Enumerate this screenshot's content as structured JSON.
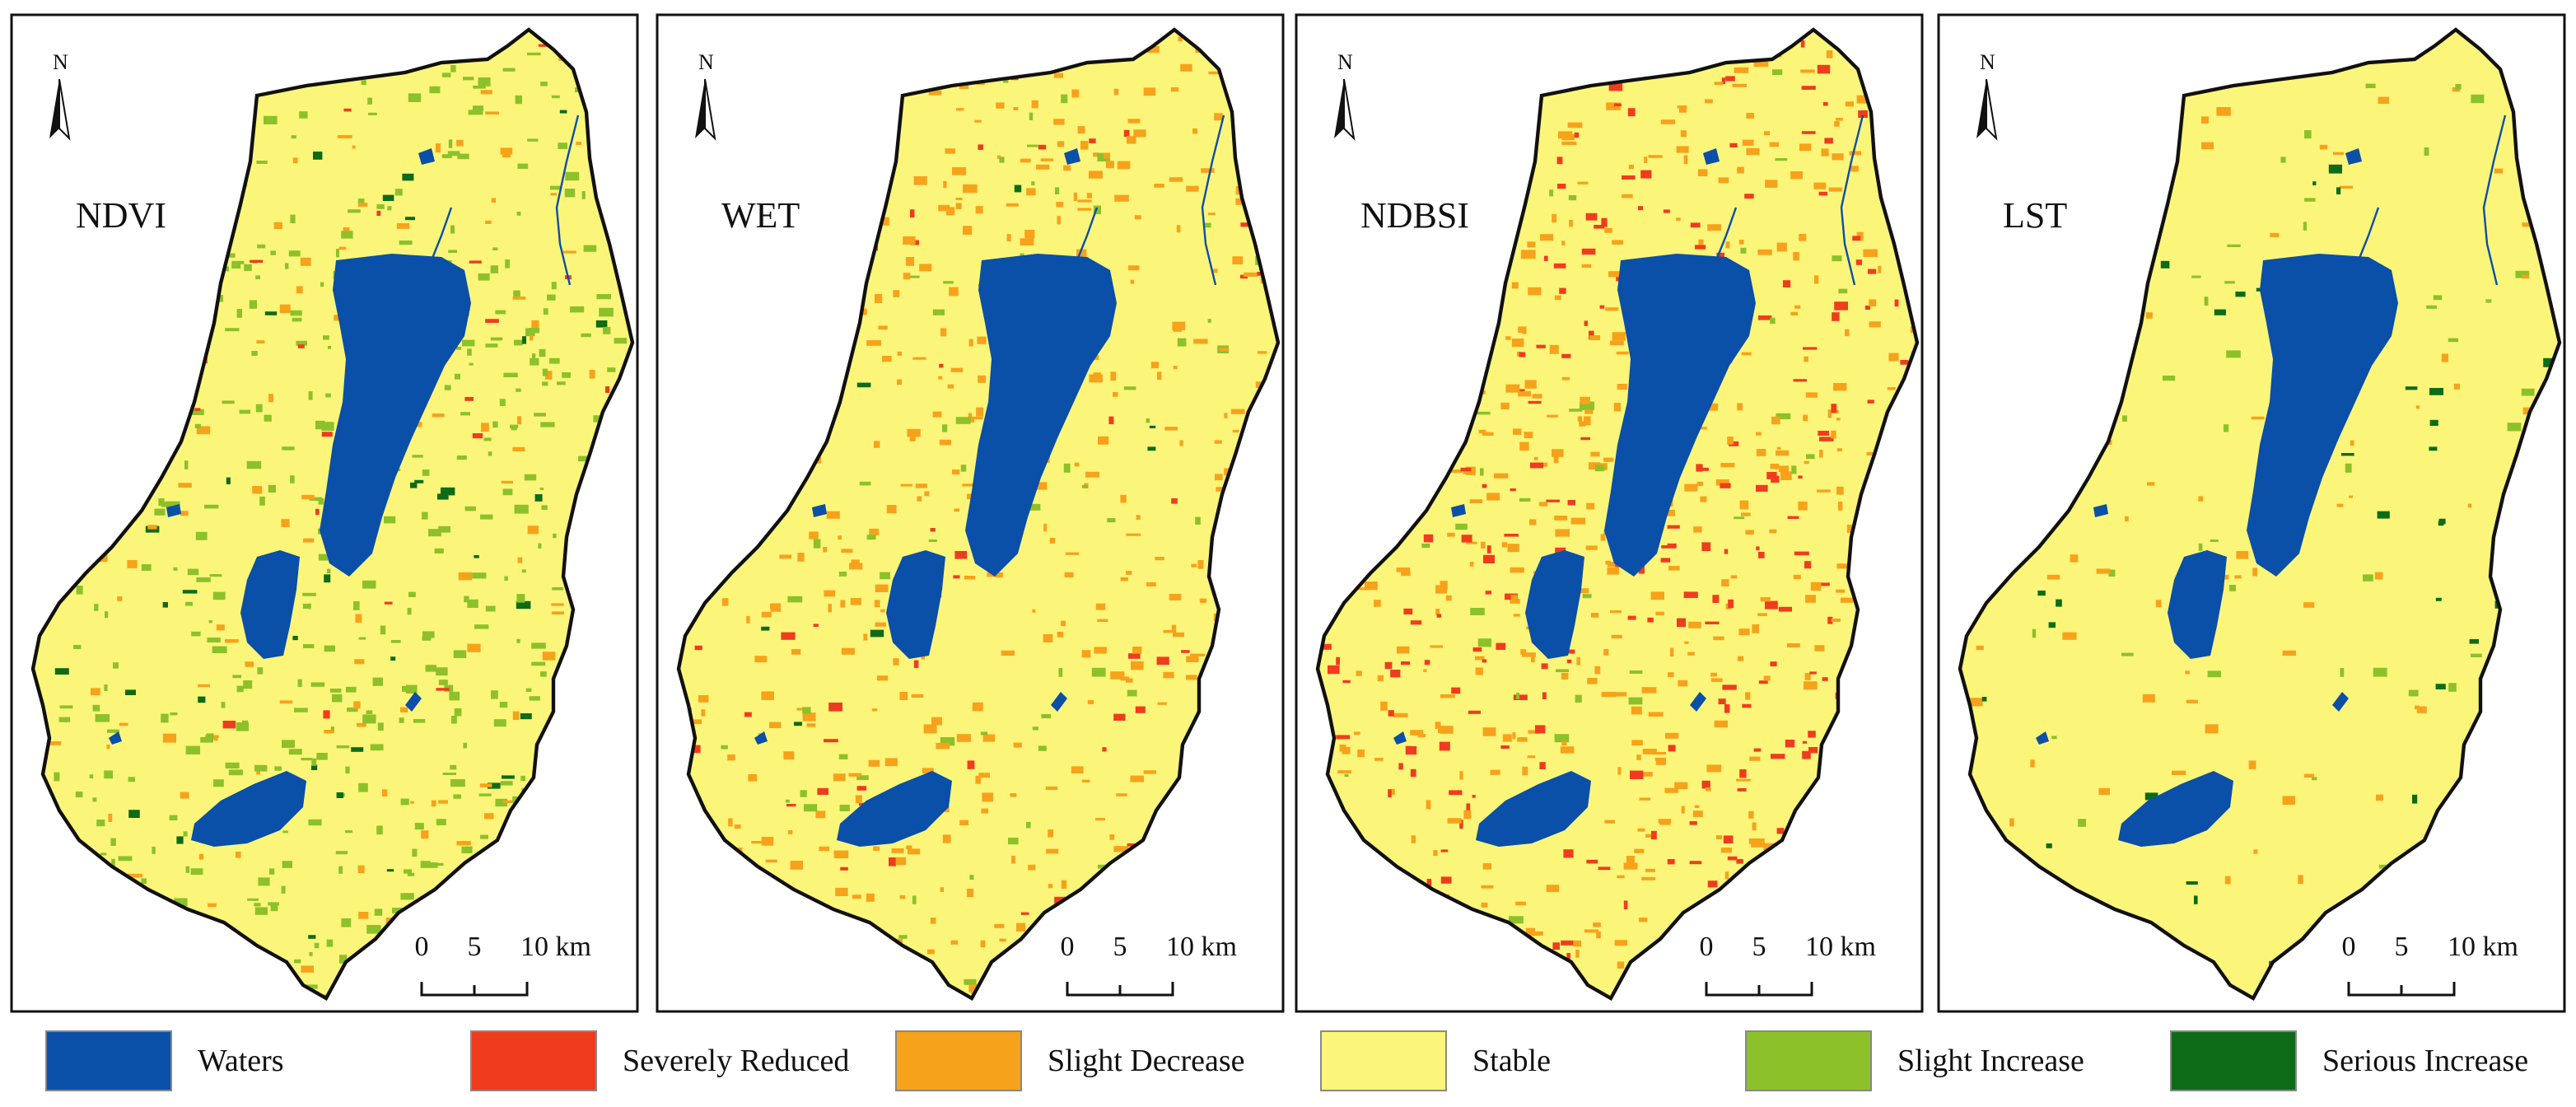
{
  "panels": [
    {
      "label": "NDVI"
    },
    {
      "label": "WET"
    },
    {
      "label": "NDBSI"
    },
    {
      "label": "LST"
    }
  ],
  "north": "N",
  "scale_bar": {
    "labels": [
      "0",
      "5",
      "10 km"
    ]
  },
  "legend": [
    {
      "name": "Waters",
      "color": "#0a4fa8"
    },
    {
      "name": "Severely Reduced",
      "color": "#f03c1e"
    },
    {
      "name": "Slight Decrease",
      "color": "#f7a21b"
    },
    {
      "name": "Stable",
      "color": "#fbf57a"
    },
    {
      "name": "Slight Increase",
      "color": "#8cc12a"
    },
    {
      "name": "Serious Increase",
      "color": "#0e6b17"
    }
  ]
}
